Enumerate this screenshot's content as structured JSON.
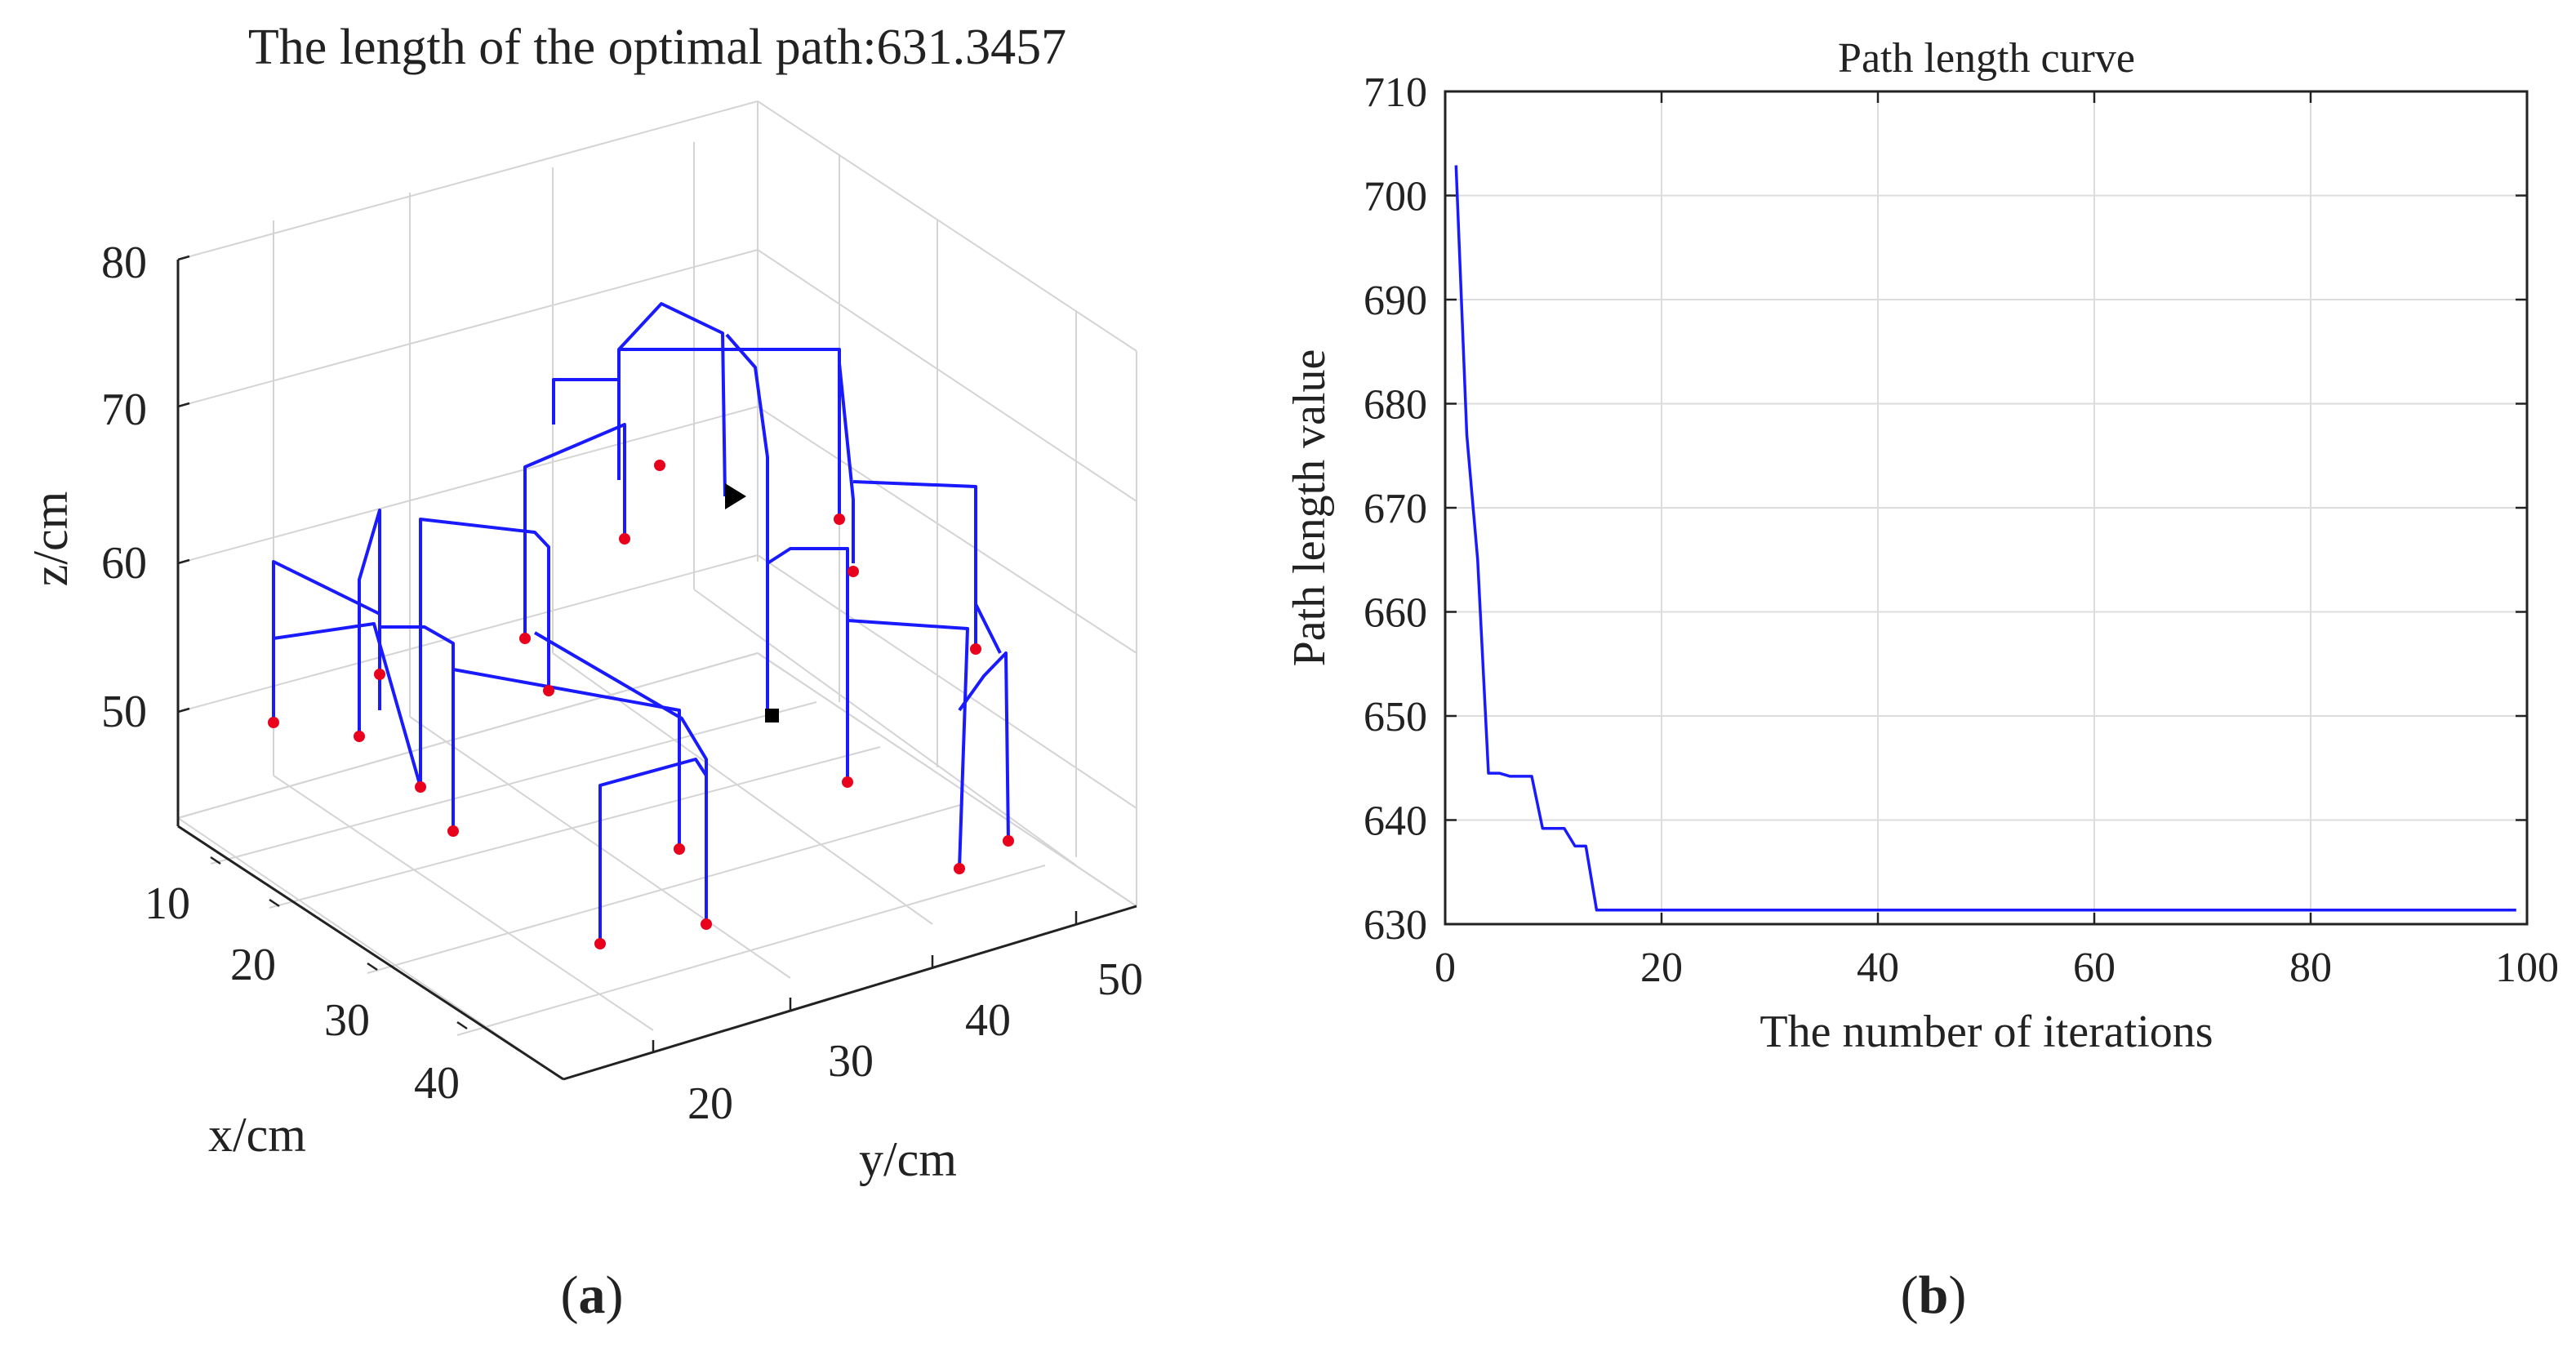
{
  "chart_data": [
    {
      "type": "line3d",
      "panel": "(a)",
      "panel_letter": "a",
      "title": "The length of the optimal path:631.3457",
      "xlabel": "x/cm",
      "ylabel": "y/cm",
      "zlabel": "z/cm",
      "xticks": [
        10,
        20,
        30,
        40
      ],
      "yticks": [
        20,
        30,
        40,
        50
      ],
      "zticks": [
        50,
        60,
        70,
        80
      ],
      "grid": true,
      "start_marker": "black square",
      "end_marker": "black triangle",
      "drill_point_color": "#e8001c",
      "path_color": "#1a1aff"
    },
    {
      "type": "line",
      "panel": "(b)",
      "panel_letter": "b",
      "title": "Path length curve",
      "xlabel": "The number of iterations",
      "ylabel": "Path length value",
      "xlim": [
        0,
        100
      ],
      "ylim": [
        630,
        710
      ],
      "xticks": [
        0,
        20,
        40,
        60,
        80,
        100
      ],
      "yticks": [
        630,
        640,
        650,
        660,
        670,
        680,
        690,
        700,
        710
      ],
      "grid": true,
      "color": "#1a1aff",
      "series": [
        {
          "name": "Path length",
          "x": [
            1,
            2,
            3,
            4,
            5,
            6,
            7,
            8,
            9,
            10,
            11,
            12,
            13,
            14,
            15,
            20,
            40,
            60,
            80,
            99
          ],
          "values": [
            702.9,
            677,
            665,
            644.5,
            644.5,
            644.2,
            644.2,
            644.2,
            639.2,
            639.2,
            639.2,
            637.5,
            637.5,
            631.3457,
            631.3457,
            631.3457,
            631.3457,
            631.3457,
            631.3457,
            631.3457
          ]
        }
      ]
    }
  ]
}
